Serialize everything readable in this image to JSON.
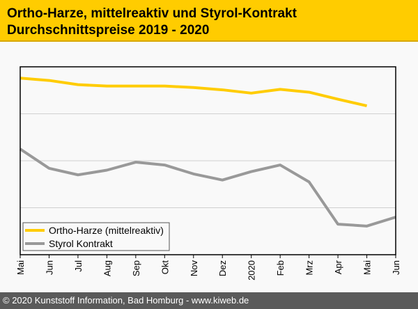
{
  "title": {
    "line1": "Ortho-Harze, mittelreaktiv und Styrol-Kontrakt",
    "line2": "Durchschnittspreise 2019 - 2020"
  },
  "footer": "© 2020 Kunststoff Information, Bad Homburg - www.kiweb.de",
  "chart_data": {
    "type": "line",
    "categories": [
      "Mai",
      "Jun",
      "Jul",
      "Aug",
      "Sep",
      "Okt",
      "Nov",
      "Dez",
      "2020",
      "Feb",
      "Mrz",
      "Apr",
      "Mai",
      "Jun"
    ],
    "ylim": [
      0,
      4
    ],
    "grid": true,
    "legend_position": "bottom-left",
    "series": [
      {
        "name": "Ortho-Harze (mittelreaktiv)",
        "color": "#ffcc00",
        "values": [
          3.76,
          3.71,
          3.62,
          3.59,
          3.59,
          3.59,
          3.56,
          3.51,
          3.44,
          3.52,
          3.46,
          3.31,
          3.17,
          null
        ]
      },
      {
        "name": "Styrol Kontrakt",
        "color": "#999999",
        "values": [
          2.25,
          1.84,
          1.7,
          1.8,
          1.97,
          1.91,
          1.72,
          1.59,
          1.77,
          1.91,
          1.55,
          0.65,
          0.61,
          0.8
        ]
      }
    ]
  }
}
